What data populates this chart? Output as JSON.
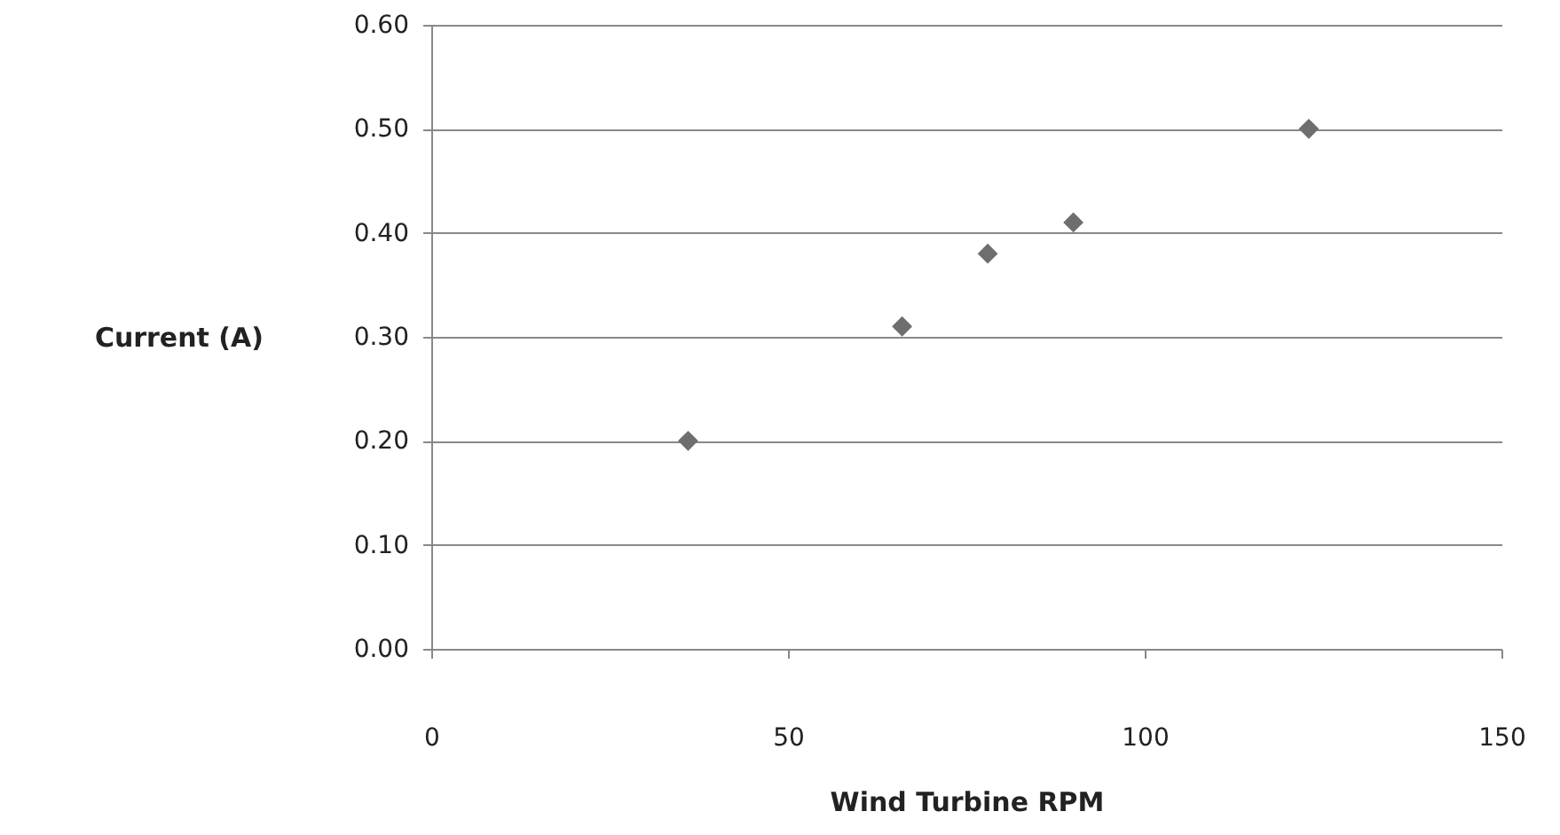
{
  "chart_data": {
    "type": "scatter",
    "xlabel": "Wind Turbine RPM",
    "ylabel": "Current (A)",
    "x": [
      36,
      66,
      78,
      90,
      123
    ],
    "series": [
      {
        "color": "#6e6e6e",
        "values": [
          0.2,
          0.31,
          0.38,
          0.41,
          0.5
        ]
      }
    ],
    "xlim": [
      0,
      150
    ],
    "xticks": [
      0,
      50,
      100,
      150
    ],
    "ylim": [
      0,
      0.6
    ],
    "yticks": [
      {
        "value": 0,
        "label": "0.00"
      },
      {
        "value": 0.1,
        "label": "0.10"
      },
      {
        "value": 0.2,
        "label": "0.20"
      },
      {
        "value": 0.3,
        "label": "0.30"
      },
      {
        "value": 0.4,
        "label": "0.40"
      },
      {
        "value": 0.5,
        "label": "0.50"
      },
      {
        "value": 0.6,
        "label": "0.60"
      }
    ],
    "grid": "y",
    "marker": "diamond"
  }
}
